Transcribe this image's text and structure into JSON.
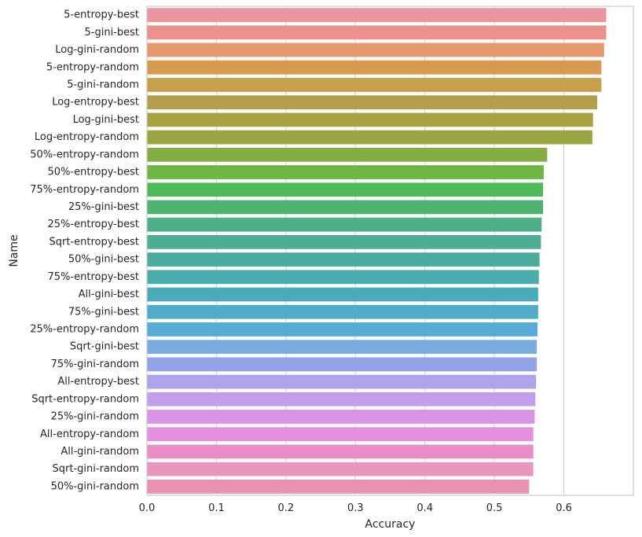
{
  "chart_data": {
    "type": "bar",
    "orientation": "horizontal",
    "xlabel": "Accuracy",
    "ylabel": "Name",
    "xlim": [
      0,
      0.7
    ],
    "x_ticks": [
      0.0,
      0.1,
      0.2,
      0.3,
      0.4,
      0.5,
      0.6
    ],
    "x_tick_labels": [
      "0.0",
      "0.1",
      "0.2",
      "0.3",
      "0.4",
      "0.5",
      "0.6"
    ],
    "grid": "vertical",
    "categories": [
      "5-entropy-best",
      "5-gini-best",
      "Log-gini-random",
      "5-entropy-random",
      "5-gini-random",
      "Log-entropy-best",
      "Log-gini-best",
      "Log-entropy-random",
      "50%-entropy-random",
      "50%-entropy-best",
      "75%-entropy-random",
      "25%-gini-best",
      "25%-entropy-best",
      "Sqrt-entropy-best",
      "50%-gini-best",
      "75%-entropy-best",
      "All-gini-best",
      "75%-gini-best",
      "25%-entropy-random",
      "Sqrt-gini-best",
      "75%-gini-random",
      "All-entropy-best",
      "Sqrt-entropy-random",
      "25%-gini-random",
      "All-entropy-random",
      "All-gini-random",
      "Sqrt-gini-random",
      "50%-gini-random"
    ],
    "values": [
      0.661,
      0.661,
      0.658,
      0.654,
      0.654,
      0.648,
      0.642,
      0.641,
      0.576,
      0.571,
      0.57,
      0.57,
      0.568,
      0.567,
      0.565,
      0.564,
      0.563,
      0.563,
      0.562,
      0.561,
      0.561,
      0.56,
      0.559,
      0.558,
      0.556,
      0.556,
      0.556,
      0.55
    ],
    "colors": [
      "#ea96a0",
      "#eb928d",
      "#e7976d",
      "#d89a4f",
      "#c9a04b",
      "#b39f4b",
      "#a8a243",
      "#9aa642",
      "#85ad42",
      "#6db742",
      "#4fb858",
      "#4fb36f",
      "#4db085",
      "#4bad92",
      "#4aac9f",
      "#4aadac",
      "#4aacbb",
      "#4faccb",
      "#57a9d8",
      "#7aabe3",
      "#93a3e8",
      "#b1a3eb",
      "#c39fe9",
      "#d993e6",
      "#e58de0",
      "#e98cc8",
      "#e896be",
      "#e992b0"
    ]
  }
}
